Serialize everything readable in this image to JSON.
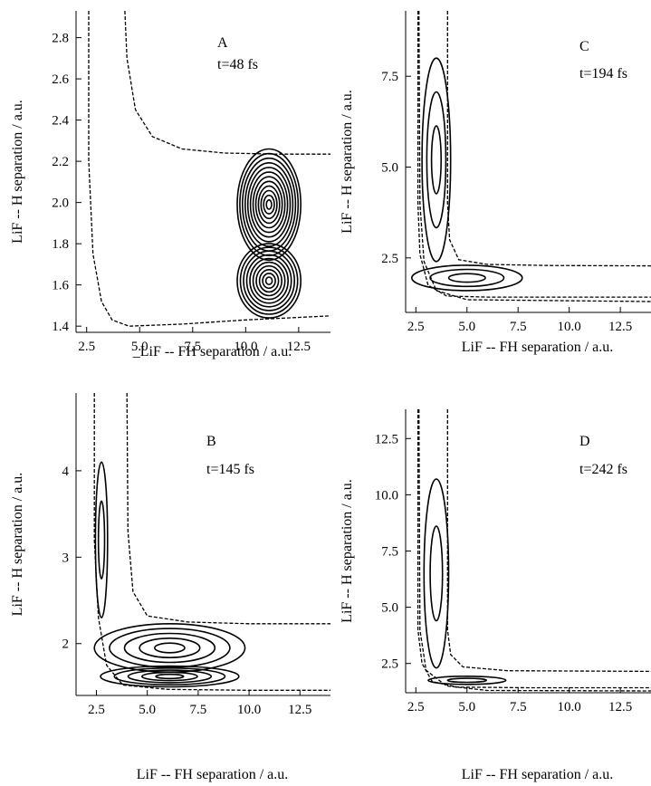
{
  "chart_data": [
    {
      "type": "contour",
      "panel": "A",
      "annotation": "t=48 fs",
      "xlabel": "_LiF -- FH separation / a.u.",
      "ylabel": "LiF -- H separation / a.u.",
      "xlim": [
        2.0,
        14.0
      ],
      "ylim": [
        1.37,
        2.93
      ],
      "xticks": [
        2.5,
        5.0,
        7.5,
        10.0,
        12.5
      ],
      "yticks": [
        1.4,
        1.6,
        1.8,
        2.0,
        2.2,
        2.4,
        2.6,
        2.8
      ],
      "xtick_labels": [
        "2.5",
        "5.0",
        "7.5",
        "10.0",
        "12.5"
      ],
      "ytick_labels": [
        "1.4",
        "1.6",
        "1.8",
        "2.0",
        "2.2",
        "2.4",
        "2.6",
        "2.8"
      ],
      "potential_contours": [
        [
          [
            2.6,
            2.93
          ],
          [
            2.6,
            2.2
          ],
          [
            2.8,
            1.75
          ],
          [
            3.2,
            1.52
          ],
          [
            3.7,
            1.43
          ],
          [
            4.5,
            1.4
          ],
          [
            7.0,
            1.41
          ],
          [
            10.0,
            1.43
          ],
          [
            12.0,
            1.44
          ],
          [
            14.0,
            1.45
          ]
        ],
        [
          [
            4.3,
            2.93
          ],
          [
            4.4,
            2.7
          ],
          [
            4.8,
            2.45
          ],
          [
            5.6,
            2.32
          ],
          [
            7.0,
            2.26
          ],
          [
            9.0,
            2.24
          ],
          [
            11.5,
            2.235
          ],
          [
            14.0,
            2.235
          ]
        ]
      ],
      "wavepacket_lobes": [
        {
          "center": [
            11.1,
            1.99
          ],
          "rx": 1.5,
          "ry": 0.27,
          "levels": 12
        },
        {
          "center": [
            11.1,
            1.62
          ],
          "rx": 1.5,
          "ry": 0.18,
          "levels": 10
        }
      ]
    },
    {
      "type": "contour",
      "panel": "C",
      "annotation": "t=194 fs",
      "xlabel": "LiF -- FH separation / a.u.",
      "ylabel": "LiF -- H separation / a.u.",
      "xlim": [
        2.0,
        14.0
      ],
      "ylim": [
        1.0,
        9.3
      ],
      "xticks": [
        2.5,
        5.0,
        7.5,
        10.0,
        12.5
      ],
      "yticks": [
        2.5,
        5.0,
        7.5
      ],
      "xtick_labels": [
        "2.5",
        "5.0",
        "7.5",
        "10.0",
        "12.5"
      ],
      "ytick_labels": [
        "2.5",
        "5.0",
        "7.5"
      ],
      "potential_contours": [
        [
          [
            2.6,
            9.3
          ],
          [
            2.6,
            4.0
          ],
          [
            2.7,
            2.6
          ],
          [
            3.1,
            1.75
          ],
          [
            4.0,
            1.45
          ],
          [
            6.0,
            1.42
          ],
          [
            10.0,
            1.42
          ],
          [
            14.0,
            1.42
          ]
        ],
        [
          [
            4.05,
            9.3
          ],
          [
            4.05,
            4.0
          ],
          [
            4.15,
            3.0
          ],
          [
            4.6,
            2.45
          ],
          [
            6.0,
            2.32
          ],
          [
            9.0,
            2.29
          ],
          [
            14.0,
            2.28
          ]
        ],
        [
          [
            2.65,
            9.3
          ],
          [
            2.7,
            4.0
          ],
          [
            2.9,
            2.4
          ],
          [
            3.5,
            1.6
          ],
          [
            5.0,
            1.35
          ],
          [
            14.0,
            1.3
          ]
        ]
      ],
      "wavepacket_lobes": [
        {
          "center": [
            5.0,
            1.95
          ],
          "rx": 2.7,
          "ry": 0.35,
          "levels": 3
        },
        {
          "center": [
            3.5,
            5.2
          ],
          "rx": 0.7,
          "ry": 2.8,
          "levels": 3
        }
      ]
    },
    {
      "type": "contour",
      "panel": "B",
      "annotation": "t=145 fs",
      "xlabel": "LiF -- FH separation / a.u.",
      "ylabel": "LiF -- H separation / a.u.",
      "xlim": [
        1.5,
        14.0
      ],
      "ylim": [
        1.4,
        4.9
      ],
      "xticks": [
        2.5,
        5.0,
        7.5,
        10.0,
        12.5
      ],
      "yticks": [
        2,
        3,
        4
      ],
      "xtick_labels": [
        "2.5",
        "5.0",
        "7.5",
        "10.0",
        "12.5"
      ],
      "ytick_labels": [
        "2",
        "3",
        "4"
      ],
      "potential_contours": [
        [
          [
            2.4,
            4.9
          ],
          [
            2.4,
            3.2
          ],
          [
            2.6,
            2.3
          ],
          [
            3.0,
            1.75
          ],
          [
            3.8,
            1.52
          ],
          [
            6.0,
            1.47
          ],
          [
            10.0,
            1.46
          ],
          [
            14.0,
            1.46
          ]
        ],
        [
          [
            4.0,
            4.9
          ],
          [
            4.05,
            3.3
          ],
          [
            4.3,
            2.6
          ],
          [
            5.0,
            2.32
          ],
          [
            7.0,
            2.25
          ],
          [
            10.0,
            2.23
          ],
          [
            14.0,
            2.23
          ]
        ]
      ],
      "wavepacket_lobes": [
        {
          "center": [
            6.1,
            1.95
          ],
          "rx": 3.7,
          "ry": 0.28,
          "levels": 5
        },
        {
          "center": [
            6.1,
            1.62
          ],
          "rx": 3.4,
          "ry": 0.12,
          "levels": 5
        },
        {
          "center": [
            2.75,
            3.2
          ],
          "rx": 0.3,
          "ry": 0.9,
          "levels": 2
        }
      ]
    },
    {
      "type": "contour",
      "panel": "D",
      "annotation": "t=242 fs",
      "xlabel": "LiF -- FH separation / a.u.",
      "ylabel": "LiF -- H separation / a.u.",
      "xlim": [
        2.0,
        14.0
      ],
      "ylim": [
        1.2,
        13.8
      ],
      "xticks": [
        2.5,
        5.0,
        7.5,
        10.0,
        12.5
      ],
      "yticks": [
        2.5,
        5.0,
        7.5,
        10.0,
        12.5
      ],
      "xtick_labels": [
        "2.5",
        "5.0",
        "7.5",
        "10.0",
        "12.5"
      ],
      "ytick_labels": [
        "2.5",
        "5.0",
        "7.5",
        "10.0",
        "12.5"
      ],
      "potential_contours": [
        [
          [
            2.6,
            13.8
          ],
          [
            2.6,
            4.0
          ],
          [
            2.8,
            2.5
          ],
          [
            3.3,
            1.7
          ],
          [
            4.5,
            1.45
          ],
          [
            8.0,
            1.42
          ],
          [
            14.0,
            1.42
          ]
        ],
        [
          [
            4.05,
            13.8
          ],
          [
            4.05,
            4.0
          ],
          [
            4.2,
            2.9
          ],
          [
            4.8,
            2.35
          ],
          [
            7.0,
            2.18
          ],
          [
            14.0,
            2.15
          ]
        ],
        [
          [
            2.65,
            13.8
          ],
          [
            2.7,
            4.0
          ],
          [
            3.0,
            2.2
          ],
          [
            4.0,
            1.5
          ],
          [
            6.0,
            1.3
          ],
          [
            14.0,
            1.28
          ]
        ]
      ],
      "wavepacket_lobes": [
        {
          "center": [
            5.0,
            1.75
          ],
          "rx": 1.9,
          "ry": 0.18,
          "levels": 2
        },
        {
          "center": [
            3.5,
            6.5
          ],
          "rx": 0.6,
          "ry": 4.2,
          "levels": 2
        }
      ]
    }
  ]
}
